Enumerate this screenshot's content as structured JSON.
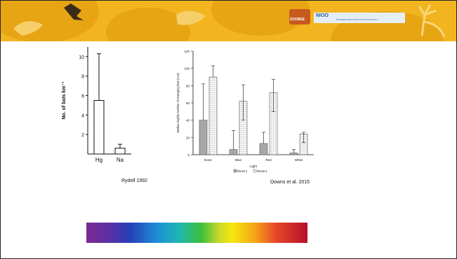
{
  "colors": {
    "banner": "#f2b51f",
    "banner_dark": "#e7a413",
    "bar_dark": "#a7a7a7",
    "bar_light": "#f4f4f4"
  },
  "logos": {
    "logo1_text": "ZOOBEE",
    "logo2_text": "NIOO",
    "logo3_text": "NETHERLANDS INSTITUTE OF ECOLOGY"
  },
  "chart_data": [
    {
      "type": "bar",
      "categories": [
        "Hg",
        "Na"
      ],
      "values": [
        5.5,
        0.6
      ],
      "error_upper": [
        10.3,
        1.0
      ],
      "ylabel": "No. of bats km⁻¹",
      "xlabel": "",
      "ylim": [
        0,
        11
      ],
      "yticks": [
        2,
        4,
        6,
        8,
        10
      ],
      "caption": "Rydell 1992"
    },
    {
      "type": "bar",
      "categories": [
        "None",
        "Blue",
        "Red",
        "White"
      ],
      "series": [
        {
          "name": "Roost 1",
          "values": [
            40,
            6,
            13,
            2
          ],
          "error_upper": [
            82,
            28,
            26,
            6
          ]
        },
        {
          "name": "Roost 2",
          "values": [
            90,
            62,
            72,
            24
          ],
          "error_upper": [
            103,
            81,
            87,
            26
          ],
          "error_lower": [
            null,
            40,
            50,
            14
          ]
        }
      ],
      "xlabel": "Light",
      "ylabel": "Median nightly number of emerging bats (n=6)",
      "ylim": [
        0,
        120
      ],
      "yticks": [
        0,
        20,
        40,
        60,
        80,
        100,
        120
      ],
      "legend_position": "bottom",
      "caption": "Downs et al. 2015"
    }
  ]
}
